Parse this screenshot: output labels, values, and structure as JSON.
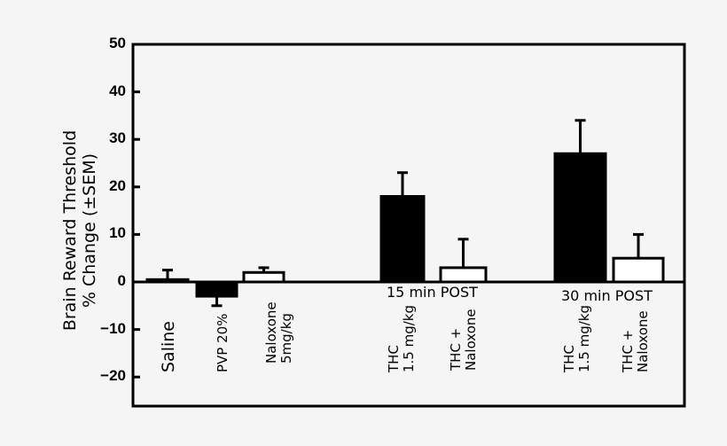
{
  "chart_data": {
    "type": "bar",
    "title": "",
    "ylabel": "Brain Reward Threshold % Change (±SEM)",
    "ylabel_lines": [
      "Brain Reward  Threshold",
      "% Change  (±SEM)"
    ],
    "xlabel": "",
    "ylim": [
      -26,
      50
    ],
    "yticks": [
      50,
      40,
      30,
      20,
      10,
      0,
      -10,
      -20
    ],
    "grid": false,
    "legend": null,
    "categories": [
      "Saline",
      "PVP 20%",
      "Naloxone 5mg/kg",
      "THC 1.5 mg/kg (15 min POST)",
      "THC + Naloxone (15 min POST)",
      "THC 1.5 mg/kg (30 min POST)",
      "THC + Naloxone (30 min POST)"
    ],
    "bars": [
      {
        "label": "Saline",
        "value": 0.5,
        "sem": 2.0,
        "fill": "black"
      },
      {
        "label": "PVP 20%",
        "value": -3,
        "sem": 2.0,
        "fill": "black"
      },
      {
        "label": "Naloxone\n5mg/kg",
        "value": 2,
        "sem": 1.0,
        "fill": "white"
      },
      {
        "label": "THC\n1.5 mg/kg",
        "value": 18,
        "sem": 5,
        "fill": "black",
        "group": "15 min POST"
      },
      {
        "label": "THC +\nNaloxone",
        "value": 3,
        "sem": 6,
        "fill": "white",
        "group": "15 min POST"
      },
      {
        "label": "THC\n1.5 mg/kg",
        "value": 27,
        "sem": 7,
        "fill": "black",
        "group": "30 min POST"
      },
      {
        "label": "THC +\nNaloxone",
        "value": 5,
        "sem": 5,
        "fill": "white",
        "group": "30 min POST"
      }
    ],
    "values": [
      0.5,
      -3,
      2,
      18,
      3,
      27,
      5
    ],
    "errors": [
      2,
      2,
      1,
      5,
      6,
      7,
      5
    ],
    "annotations": [
      "15 min POST",
      "30 min POST"
    ]
  },
  "colors": {
    "background": "#f5f5f5",
    "ink": "#000000",
    "hollow": "#ffffff"
  }
}
